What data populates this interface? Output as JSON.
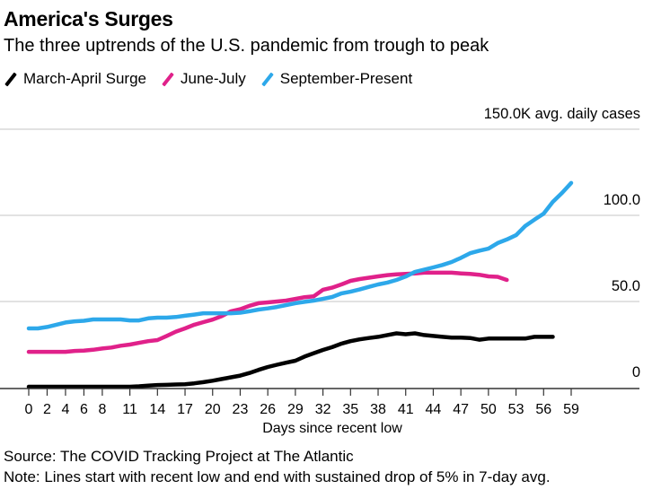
{
  "chart_data": {
    "type": "line",
    "title": "America's Surges",
    "subtitle": "The three uptrends of the U.S. pandemic from trough to peak",
    "xlabel": "Days since recent low",
    "ylabel": "avg. daily cases",
    "y_unit": "K",
    "xlim": [
      0,
      59
    ],
    "ylim": [
      0,
      150
    ],
    "x_ticks": [
      0,
      2,
      4,
      6,
      8,
      11,
      14,
      17,
      20,
      23,
      26,
      29,
      32,
      35,
      38,
      41,
      44,
      47,
      50,
      53,
      56,
      59
    ],
    "x_tick_labels": [
      "0",
      "2",
      "4",
      "6",
      "8",
      "11",
      "14",
      "17",
      "20",
      "23",
      "26",
      "29",
      "32",
      "35",
      "38",
      "41",
      "44",
      "47",
      "50",
      "53",
      "56",
      "59"
    ],
    "y_ticks": [
      0,
      50,
      100,
      150
    ],
    "y_tick_labels": [
      "0",
      "50.0",
      "100.0",
      "150.0K avg. daily cases"
    ],
    "grid": true,
    "legend_position": "top-left",
    "series": [
      {
        "name": "March-April Surge",
        "color": "#000000",
        "x": [
          0,
          1,
          2,
          3,
          4,
          5,
          6,
          7,
          8,
          9,
          10,
          11,
          12,
          13,
          14,
          15,
          16,
          17,
          18,
          19,
          20,
          21,
          22,
          23,
          24,
          25,
          26,
          27,
          28,
          29,
          30,
          31,
          32,
          33,
          34,
          35,
          36,
          37,
          38,
          39,
          40,
          41,
          42,
          43,
          44,
          45,
          46,
          47,
          48,
          49,
          50,
          51,
          52,
          53,
          54,
          55,
          56,
          57
        ],
        "values": [
          0.5,
          0.5,
          0.5,
          0.5,
          0.5,
          0.5,
          0.5,
          0.5,
          0.5,
          0.5,
          0.5,
          0.5,
          0.8,
          1.2,
          1.5,
          1.6,
          1.8,
          2,
          2.5,
          3.2,
          4,
          5,
          6,
          7,
          8.5,
          10.3,
          12,
          13.3,
          14.5,
          15.6,
          18,
          20,
          21.9,
          23.5,
          25.5,
          27,
          28,
          28.8,
          29.5,
          30.5,
          31.5,
          31,
          31.5,
          30.5,
          30,
          29.5,
          29,
          29,
          28.8,
          27.8,
          28.5,
          28.5,
          28.5,
          28.5,
          28.5,
          29.5,
          29.5,
          29.5
        ]
      },
      {
        "name": "June-July",
        "color": "#E0218A",
        "x": [
          0,
          1,
          2,
          3,
          4,
          5,
          6,
          7,
          8,
          9,
          10,
          11,
          12,
          13,
          14,
          15,
          16,
          17,
          18,
          19,
          20,
          21,
          22,
          23,
          24,
          25,
          26,
          27,
          28,
          29,
          30,
          31,
          32,
          33,
          34,
          35,
          36,
          37,
          38,
          39,
          40,
          41,
          42,
          43,
          44,
          45,
          46,
          47,
          48,
          49,
          50,
          51,
          52
        ],
        "values": [
          20.8,
          20.8,
          20.8,
          20.8,
          20.8,
          21.3,
          21.5,
          22,
          22.7,
          23.3,
          24.3,
          25,
          26,
          27,
          27.6,
          30,
          32.5,
          34.4,
          36.5,
          38,
          39.5,
          41.5,
          44.3,
          45.5,
          47.5,
          49,
          49.5,
          50,
          50.5,
          51.5,
          52.5,
          53,
          56.8,
          58,
          59.9,
          62,
          63,
          63.8,
          64.6,
          65.3,
          65.8,
          66,
          66.3,
          66.7,
          66.7,
          66.7,
          66.7,
          66.3,
          66,
          65.5,
          64.6,
          64.3,
          62.5
        ]
      },
      {
        "name": "September-Present",
        "color": "#2DA8EA",
        "x": [
          0,
          1,
          2,
          3,
          4,
          5,
          6,
          7,
          8,
          9,
          10,
          11,
          12,
          13,
          14,
          15,
          16,
          17,
          18,
          19,
          20,
          21,
          22,
          23,
          24,
          25,
          26,
          27,
          28,
          29,
          30,
          31,
          32,
          33,
          34,
          35,
          36,
          37,
          38,
          39,
          40,
          41,
          42,
          43,
          44,
          45,
          46,
          47,
          48,
          49,
          50,
          51,
          52,
          53,
          54,
          55,
          56,
          57,
          58,
          59
        ],
        "values": [
          34.4,
          34.4,
          35.2,
          36.5,
          37.8,
          38.5,
          38.8,
          39.6,
          39.6,
          39.6,
          39.6,
          39,
          39,
          40.2,
          40.6,
          40.6,
          41,
          41.7,
          42.4,
          43.2,
          43.2,
          43.2,
          43.2,
          43.5,
          44.3,
          45.3,
          46,
          46.8,
          47.9,
          49,
          49.8,
          50.5,
          51.5,
          52.6,
          54.7,
          55.7,
          57,
          58.5,
          59.9,
          61,
          62.5,
          64.5,
          67.2,
          68.5,
          69.8,
          71.2,
          72.9,
          75.3,
          78,
          79.5,
          80.7,
          83.9,
          86,
          88.5,
          93.8,
          97.5,
          101,
          107.8,
          113,
          118.8
        ]
      }
    ]
  },
  "legend": [
    {
      "label": "March-April Surge",
      "color": "#000000"
    },
    {
      "label": "June-July",
      "color": "#E0218A"
    },
    {
      "label": "September-Present",
      "color": "#2DA8EA"
    }
  ],
  "footer": {
    "source": "Source: The COVID Tracking Project at The Atlantic",
    "note": "Note: Lines start with recent low and end with sustained drop of 5% in 7-day avg."
  }
}
